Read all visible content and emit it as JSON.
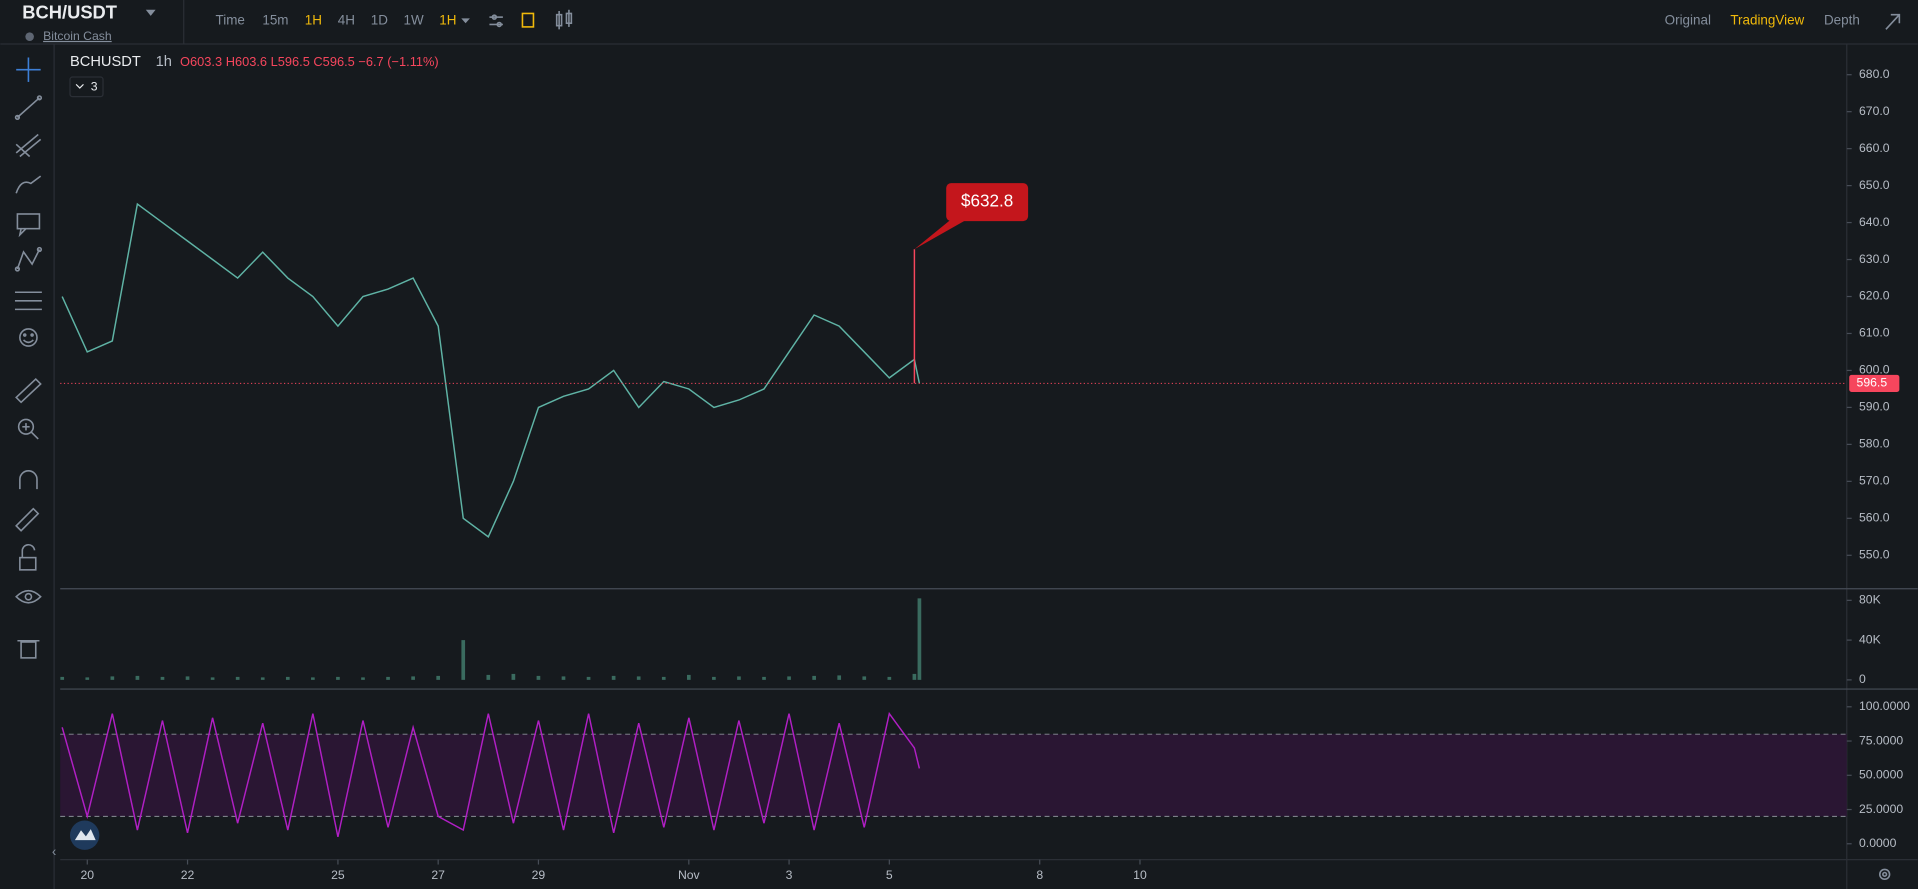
{
  "header": {
    "symbol": "BCH/USDT",
    "name": "Bitcoin Cash",
    "intervals": [
      "Time",
      "15m",
      "1H",
      "4H",
      "1D",
      "1W",
      "1H"
    ],
    "views": [
      "Original",
      "TradingView",
      "Depth"
    ]
  },
  "legend": {
    "symbol": "BCHUSDT",
    "interval": "1h",
    "ohlc": "O603.3 H603.6 L596.5 C596.5 −6.7 (−1.11%)",
    "indicators": "3"
  },
  "chart_data": [
    {
      "type": "line",
      "color": "#5fb3a5",
      "x": [
        -0.5,
        0,
        0.5,
        1,
        1.5,
        2,
        2.5,
        3,
        3.5,
        4,
        4.5,
        5,
        5.5,
        6,
        6.5,
        7,
        7.5,
        8,
        8.5,
        9,
        9.5,
        10,
        10.5,
        11,
        11.5,
        12,
        12.5,
        13,
        13.5,
        14,
        14.5,
        15,
        15.5,
        16,
        16.5,
        16.6
      ],
      "values": [
        620,
        605,
        608,
        645,
        640,
        635,
        630,
        625,
        632,
        625,
        620,
        612,
        620,
        622,
        625,
        612,
        560,
        555,
        570,
        590,
        593,
        595,
        600,
        590,
        597,
        595,
        590,
        592,
        595,
        605,
        615,
        612,
        605,
        598,
        603,
        596.5
      ],
      "xlim": [
        -0.54,
        35.1
      ],
      "xticks": [
        {
          "value": 0,
          "label": "20"
        },
        {
          "value": 2,
          "label": "22"
        },
        {
          "value": 5,
          "label": "25"
        },
        {
          "value": 7,
          "label": "27"
        },
        {
          "value": 9,
          "label": "29"
        },
        {
          "value": 12,
          "label": "Nov"
        },
        {
          "value": 14,
          "label": "3"
        },
        {
          "value": 16,
          "label": "5"
        },
        {
          "value": 19,
          "label": "8"
        },
        {
          "value": 21,
          "label": "10"
        }
      ],
      "ylim": [
        541.1,
        688.3
      ],
      "yticks": [
        {
          "value": 550,
          "label": "550.0"
        },
        {
          "value": 560,
          "label": "560.0"
        },
        {
          "value": 570,
          "label": "570.0"
        },
        {
          "value": 580,
          "label": "580.0"
        },
        {
          "value": 590,
          "label": "590.0"
        },
        {
          "value": 600,
          "label": "600.0"
        },
        {
          "value": 610,
          "label": "610.0"
        },
        {
          "value": 620,
          "label": "620.0"
        },
        {
          "value": 630,
          "label": "630.0"
        },
        {
          "value": 640,
          "label": "640.0"
        },
        {
          "value": 650,
          "label": "650.0"
        },
        {
          "value": 660,
          "label": "660.0"
        },
        {
          "value": 670,
          "label": "670.0"
        },
        {
          "value": 680,
          "label": "680.0"
        }
      ],
      "last_value": 596.5,
      "annotation": {
        "x": 16.5,
        "value": 632.8,
        "label": "$632.8"
      }
    },
    {
      "type": "bar",
      "color": "#3a6b5f",
      "x": [
        -0.5,
        0,
        0.5,
        1,
        1.5,
        2,
        2.5,
        3,
        3.5,
        4,
        4.5,
        5,
        5.5,
        6,
        6.5,
        7,
        7.5,
        8,
        8.5,
        9,
        9.5,
        10,
        10.5,
        11,
        11.5,
        12,
        12.5,
        13,
        13.5,
        14,
        14.5,
        15,
        15.5,
        16,
        16.5,
        16.6
      ],
      "values": [
        3000,
        2500,
        3500,
        4000,
        3000,
        3500,
        2500,
        3000,
        2500,
        3000,
        2500,
        3000,
        2500,
        3000,
        3500,
        4000,
        40000,
        5000,
        6000,
        4000,
        3500,
        3000,
        4000,
        3500,
        3000,
        5000,
        3000,
        3500,
        3000,
        3500,
        4000,
        4500,
        3500,
        3000,
        6000,
        82000
      ],
      "xlim": [
        -0.54,
        35.1
      ],
      "ylim": [
        -7400,
        91000
      ],
      "yticks": [
        0,
        {
          "value": 40000,
          "label": "40K"
        },
        {
          "value": 80000,
          "label": "80K"
        }
      ]
    },
    {
      "type": "line",
      "color": "#b01fc4",
      "x": [
        -0.5,
        0,
        0.5,
        1,
        1.5,
        2,
        2.5,
        3,
        3.5,
        4,
        4.5,
        5,
        5.5,
        6,
        6.5,
        7,
        7.5,
        8,
        8.5,
        9,
        9.5,
        10,
        10.5,
        11,
        11.5,
        12,
        12.5,
        13,
        13.5,
        14,
        14.5,
        15,
        15.5,
        16,
        16.5,
        16.6
      ],
      "values": [
        85,
        20,
        95,
        10,
        90,
        8,
        92,
        15,
        88,
        10,
        95,
        5,
        90,
        12,
        85,
        20,
        10,
        95,
        15,
        90,
        10,
        95,
        8,
        88,
        12,
        92,
        10,
        90,
        15,
        95,
        10,
        88,
        12,
        95,
        70,
        55
      ],
      "xlim": [
        -0.54,
        35.1
      ],
      "ylim": [
        -10.7,
        111.6
      ],
      "band": [
        20,
        80
      ],
      "yticks": [
        {
          "value": 0,
          "label": "0.0000"
        },
        {
          "value": 25,
          "label": "25.0000"
        },
        {
          "value": 50,
          "label": "50.0000"
        },
        {
          "value": 75,
          "label": "75.0000"
        },
        {
          "value": 100,
          "label": "100.0000"
        }
      ]
    }
  ]
}
